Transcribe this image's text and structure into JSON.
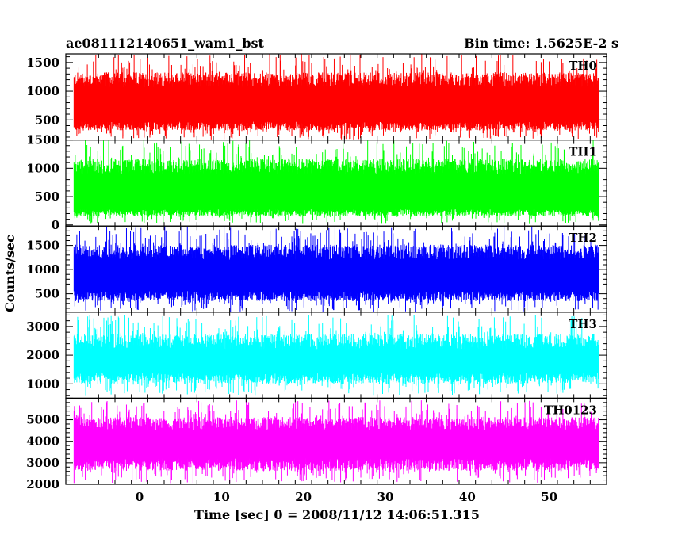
{
  "chart_data": {
    "type": "line",
    "title_left": "ae081112140651_wam1_bst",
    "title_right": "Bin time: 1.5625E-2 s",
    "xlabel": "Time [sec] 0 = 2008/11/12 14:06:51.315",
    "ylabel": "Counts/sec",
    "xlim": [
      -9,
      57
    ],
    "x_ticks": [
      0,
      10,
      20,
      30,
      40,
      50
    ],
    "x_range_data": [
      -8,
      56
    ],
    "panels": [
      {
        "name": "TH0",
        "color": "#ff0000",
        "ylim": [
          150,
          1650
        ],
        "yticks": [
          500,
          1000,
          1500
        ],
        "band": [
          470,
          1070
        ],
        "spikes": [
          160,
          1650
        ]
      },
      {
        "name": "TH1",
        "color": "#00ff00",
        "ylim": [
          -20,
          1500
        ],
        "yticks": [
          0,
          500,
          1000,
          1500
        ],
        "band": [
          280,
          900
        ],
        "spikes": [
          30,
          1500
        ]
      },
      {
        "name": "TH2",
        "color": "#0000ff",
        "ylim": [
          120,
          1900
        ],
        "yticks": [
          500,
          1000,
          1500
        ],
        "band": [
          560,
          1200
        ],
        "spikes": [
          130,
          1900
        ]
      },
      {
        "name": "TH3",
        "color": "#00ffff",
        "ylim": [
          500,
          3500
        ],
        "yticks": [
          1000,
          2000,
          3000
        ],
        "band": [
          1400,
          2200
        ],
        "spikes": [
          600,
          3400
        ]
      },
      {
        "name": "TH0123",
        "color": "#ff00ff",
        "ylim": [
          2000,
          6000
        ],
        "yticks": [
          2000,
          3000,
          4000,
          5000
        ],
        "band": [
          3200,
          4500
        ],
        "spikes": [
          2050,
          5900
        ]
      }
    ]
  }
}
